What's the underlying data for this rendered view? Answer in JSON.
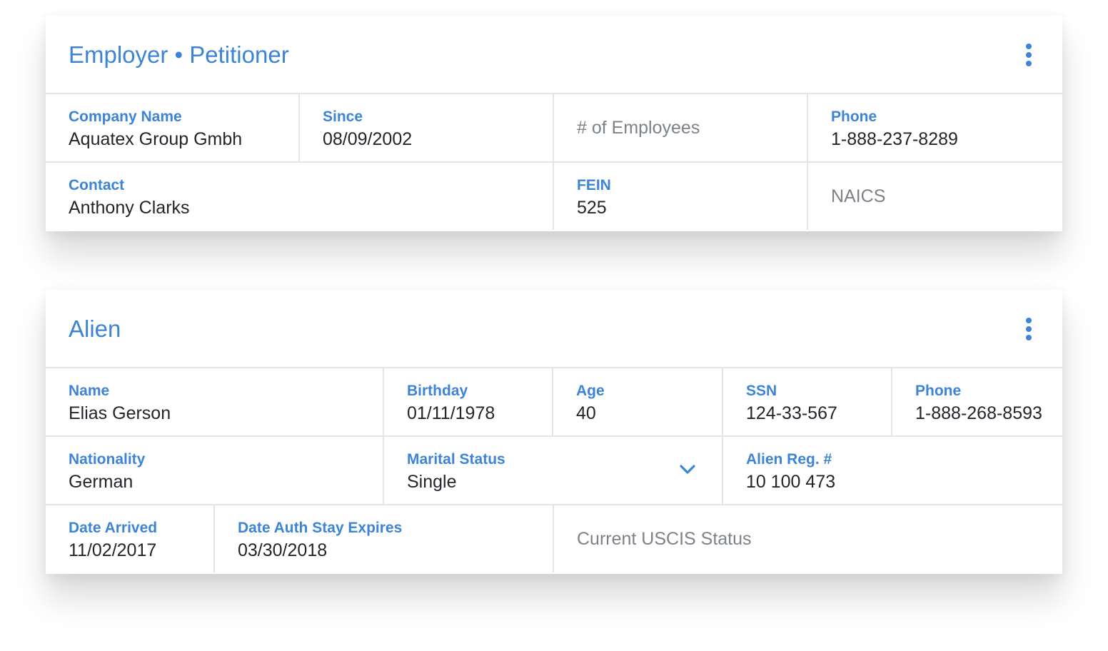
{
  "employer": {
    "title": "Employer • Petitioner",
    "company_name": {
      "label": "Company Name",
      "value": "Aquatex Group Gmbh"
    },
    "since": {
      "label": "Since",
      "value": "08/09/2002"
    },
    "employees": {
      "placeholder": "# of Employees"
    },
    "phone": {
      "label": "Phone",
      "value": "1-888-237-8289"
    },
    "contact": {
      "label": "Contact",
      "value": "Anthony Clarks"
    },
    "fein": {
      "label": "FEIN",
      "value": "525"
    },
    "naics": {
      "placeholder": "NAICS"
    }
  },
  "alien": {
    "title": "Alien",
    "name": {
      "label": "Name",
      "value": "Elias Gerson"
    },
    "birthday": {
      "label": "Birthday",
      "value": "01/11/1978"
    },
    "age": {
      "label": "Age",
      "value": "40"
    },
    "ssn": {
      "label": "SSN",
      "value": "124-33-567"
    },
    "phone": {
      "label": "Phone",
      "value": "1-888-268-8593"
    },
    "nationality": {
      "label": "Nationality",
      "value": "German"
    },
    "marital_status": {
      "label": "Marital Status",
      "value": "Single"
    },
    "alien_reg": {
      "label": "Alien Reg. #",
      "value": "10 100 473"
    },
    "date_arrived": {
      "label": "Date Arrived",
      "value": "11/02/2017"
    },
    "date_auth_stay_expires": {
      "label": "Date Auth Stay Expires",
      "value": "03/30/2018"
    },
    "uscis_status": {
      "placeholder": "Current USCIS Status"
    }
  },
  "icons": {
    "menu": "more-vertical-icon",
    "dropdown": "chevron-down-icon"
  },
  "colors": {
    "accent": "#3d84d6",
    "text": "#22262b",
    "placeholder": "#7c8288",
    "divider": "#e3e5e8"
  }
}
